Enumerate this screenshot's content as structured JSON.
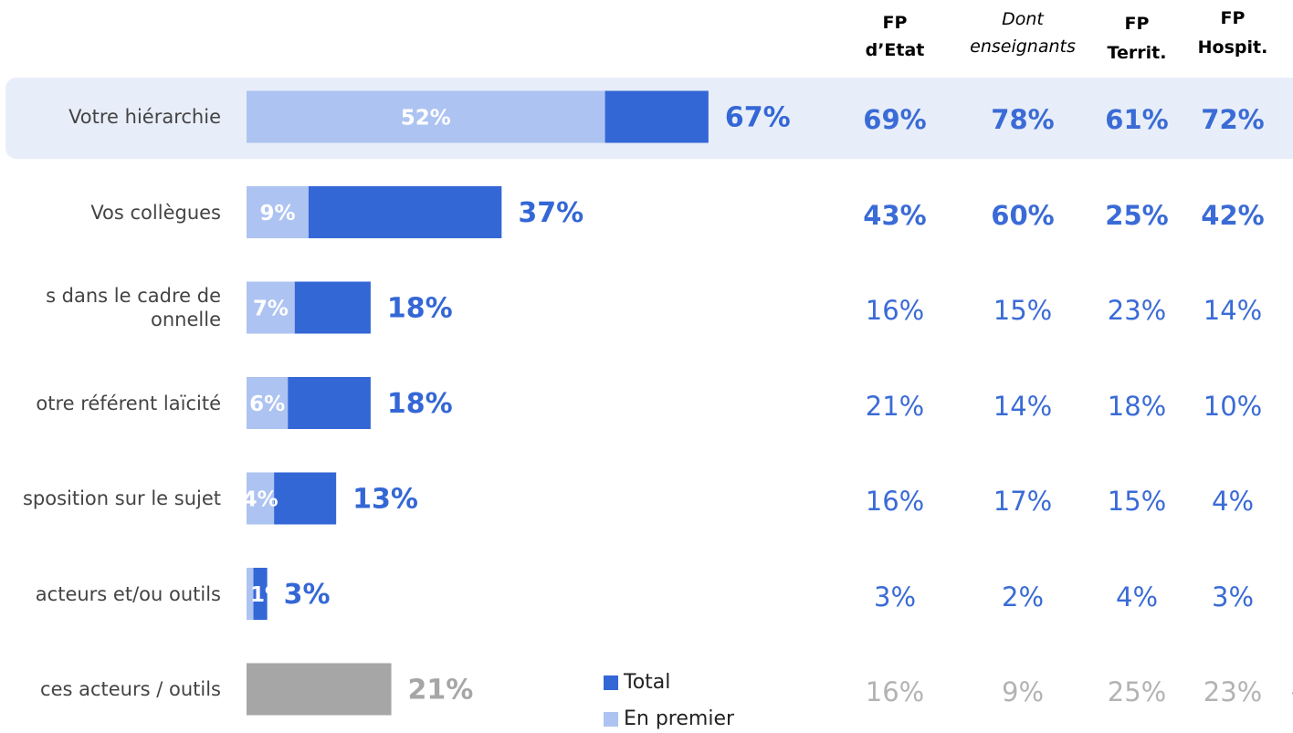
{
  "chart_data": {
    "type": "bar",
    "orientation": "horizontal",
    "categories": [
      "Votre hiérarchie",
      "Vos collègues",
      "s dans le cadre de\nonnelle",
      "otre référent laïcité",
      "sposition sur le sujet",
      "acteurs et/ou outils",
      "ces acteurs / outils"
    ],
    "xlim": [
      0,
      100
    ],
    "series": [
      {
        "name": "Total",
        "color": "#3467d6",
        "point_colors": [
          "#3467d6",
          "#3467d6",
          "#3467d6",
          "#3467d6",
          "#3467d6",
          "#3467d6",
          "#a6a6a6"
        ],
        "values": [
          67,
          37,
          18,
          18,
          13,
          3,
          21
        ],
        "value_labels": [
          "67%",
          "37%",
          "18%",
          "18%",
          "13%",
          "3%",
          "21%"
        ]
      },
      {
        "name": "En premier",
        "color": "#adc3f1",
        "values": [
          52,
          9,
          7,
          6,
          4,
          1,
          null
        ],
        "value_labels": [
          "52%",
          "9%",
          "7%",
          "6%",
          "4%",
          "1%",
          null
        ]
      }
    ],
    "highlight_row": 0,
    "table": {
      "columns": [
        "FP\nd’Etat",
        "Dont\nenseignants",
        "FP\nTerrit.",
        "FP\nHospit."
      ],
      "rows": [
        [
          "69%",
          "78%",
          "61%",
          "72%"
        ],
        [
          "43%",
          "60%",
          "25%",
          "42%"
        ],
        [
          "16%",
          "15%",
          "23%",
          "14%"
        ],
        [
          "21%",
          "14%",
          "18%",
          "10%"
        ],
        [
          "16%",
          "17%",
          "15%",
          "4%"
        ],
        [
          "3%",
          "2%",
          "4%",
          "3%"
        ],
        [
          "16%",
          "9%",
          "25%",
          "23%"
        ]
      ],
      "bold_rows": [
        0,
        1
      ],
      "muted_rows": [
        6
      ]
    },
    "annotation": "3"
  }
}
